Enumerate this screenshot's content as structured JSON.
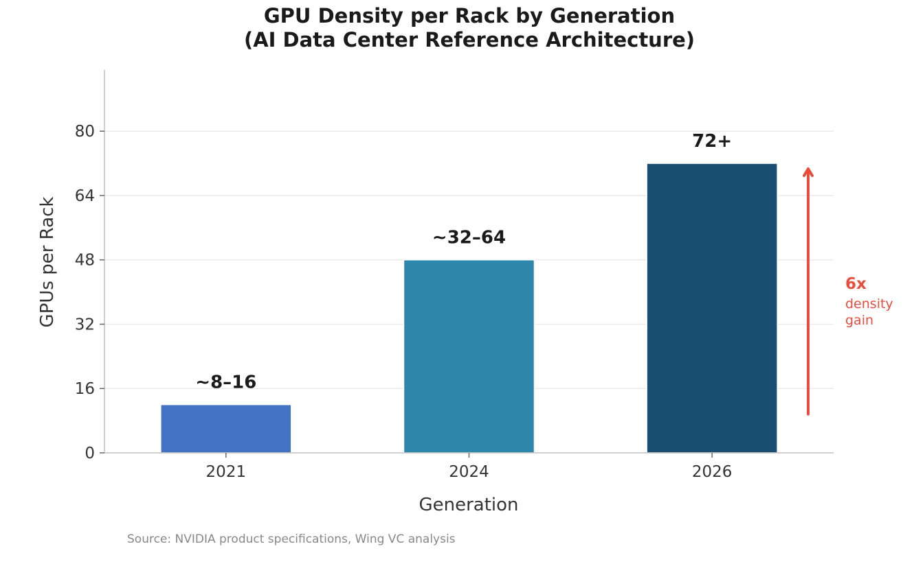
{
  "chart_data": {
    "type": "bar",
    "title": "GPU Density per Rack by Generation",
    "subtitle": "(AI Data Center Reference Architecture)",
    "xlabel": "Generation",
    "ylabel": "GPUs per Rack",
    "categories": [
      "2021",
      "2024",
      "2026"
    ],
    "values": [
      12,
      48,
      72
    ],
    "data_labels": [
      "~8–16",
      "~32–64",
      "72+"
    ],
    "colors": [
      "#4472c4",
      "#2e86ab",
      "#1b4f72"
    ],
    "ylim": [
      0,
      96
    ],
    "yticks": [
      0,
      16,
      32,
      48,
      64,
      80
    ],
    "grid": true,
    "annotation": {
      "text": "6x",
      "subtext_line1": "density",
      "subtext_line2": "gain",
      "arrow_from": 12,
      "arrow_to": 72,
      "color": "#e74c3c"
    }
  },
  "footer": {
    "source": "Source: NVIDIA product specifications, Wing VC analysis"
  }
}
